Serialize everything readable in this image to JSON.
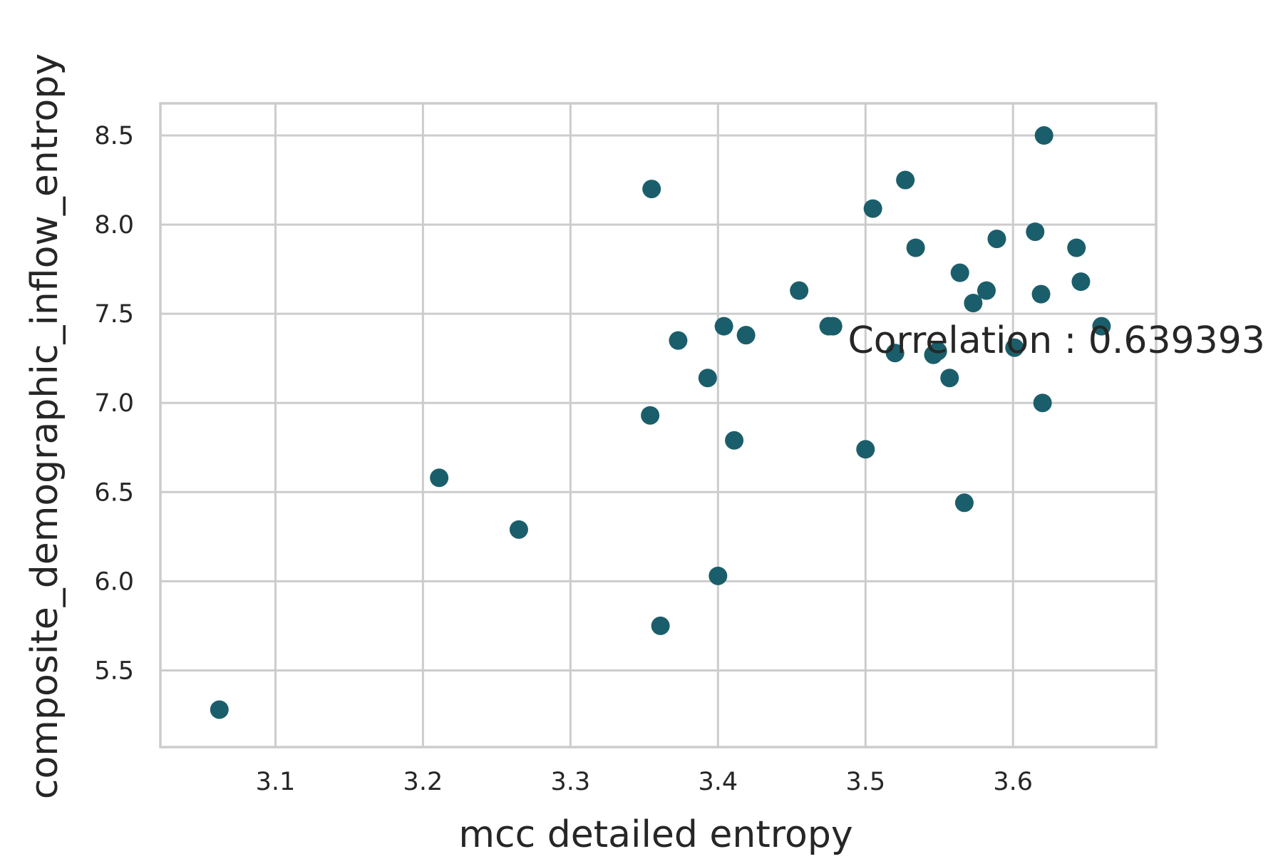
{
  "chart_data": {
    "type": "scatter",
    "title": "",
    "xlabel": "mcc  detailed  entropy",
    "ylabel": "composite_demographic_inflow_entropy",
    "xlim": [
      3.022,
      3.697
    ],
    "ylim": [
      5.07,
      8.68
    ],
    "xticks": [
      3.1,
      3.2,
      3.3,
      3.4,
      3.5,
      3.6
    ],
    "xtick_labels": [
      "3.1",
      "3.2",
      "3.3",
      "3.4",
      "3.5",
      "3.6"
    ],
    "yticks": [
      5.5,
      6.0,
      6.5,
      7.0,
      7.5,
      8.0,
      8.5
    ],
    "ytick_labels": [
      "5.5",
      "6.0",
      "6.5",
      "7.0",
      "7.5",
      "8.0",
      "8.5"
    ],
    "grid": true,
    "marker_color": "#1b5e6b",
    "annotation": {
      "text": "Correlation : 0.639393",
      "x": 3.488,
      "y": 7.28
    },
    "points": [
      {
        "x": 3.062,
        "y": 5.28
      },
      {
        "x": 3.211,
        "y": 6.58
      },
      {
        "x": 3.265,
        "y": 6.29
      },
      {
        "x": 3.355,
        "y": 8.2
      },
      {
        "x": 3.354,
        "y": 6.93
      },
      {
        "x": 3.361,
        "y": 5.75
      },
      {
        "x": 3.373,
        "y": 7.35
      },
      {
        "x": 3.393,
        "y": 7.14
      },
      {
        "x": 3.4,
        "y": 6.03
      },
      {
        "x": 3.404,
        "y": 7.43
      },
      {
        "x": 3.411,
        "y": 6.79
      },
      {
        "x": 3.419,
        "y": 7.38
      },
      {
        "x": 3.455,
        "y": 7.63
      },
      {
        "x": 3.475,
        "y": 7.43
      },
      {
        "x": 3.478,
        "y": 7.43
      },
      {
        "x": 3.5,
        "y": 6.74
      },
      {
        "x": 3.505,
        "y": 8.09
      },
      {
        "x": 3.52,
        "y": 7.28
      },
      {
        "x": 3.527,
        "y": 8.25
      },
      {
        "x": 3.534,
        "y": 7.87
      },
      {
        "x": 3.546,
        "y": 7.27
      },
      {
        "x": 3.549,
        "y": 7.29
      },
      {
        "x": 3.557,
        "y": 7.14
      },
      {
        "x": 3.564,
        "y": 7.73
      },
      {
        "x": 3.567,
        "y": 6.44
      },
      {
        "x": 3.573,
        "y": 7.56
      },
      {
        "x": 3.582,
        "y": 7.63
      },
      {
        "x": 3.589,
        "y": 7.92
      },
      {
        "x": 3.601,
        "y": 7.31
      },
      {
        "x": 3.615,
        "y": 7.96
      },
      {
        "x": 3.619,
        "y": 7.61
      },
      {
        "x": 3.62,
        "y": 7.0
      },
      {
        "x": 3.621,
        "y": 8.5
      },
      {
        "x": 3.643,
        "y": 7.87
      },
      {
        "x": 3.646,
        "y": 7.68
      },
      {
        "x": 3.66,
        "y": 7.43
      }
    ]
  }
}
